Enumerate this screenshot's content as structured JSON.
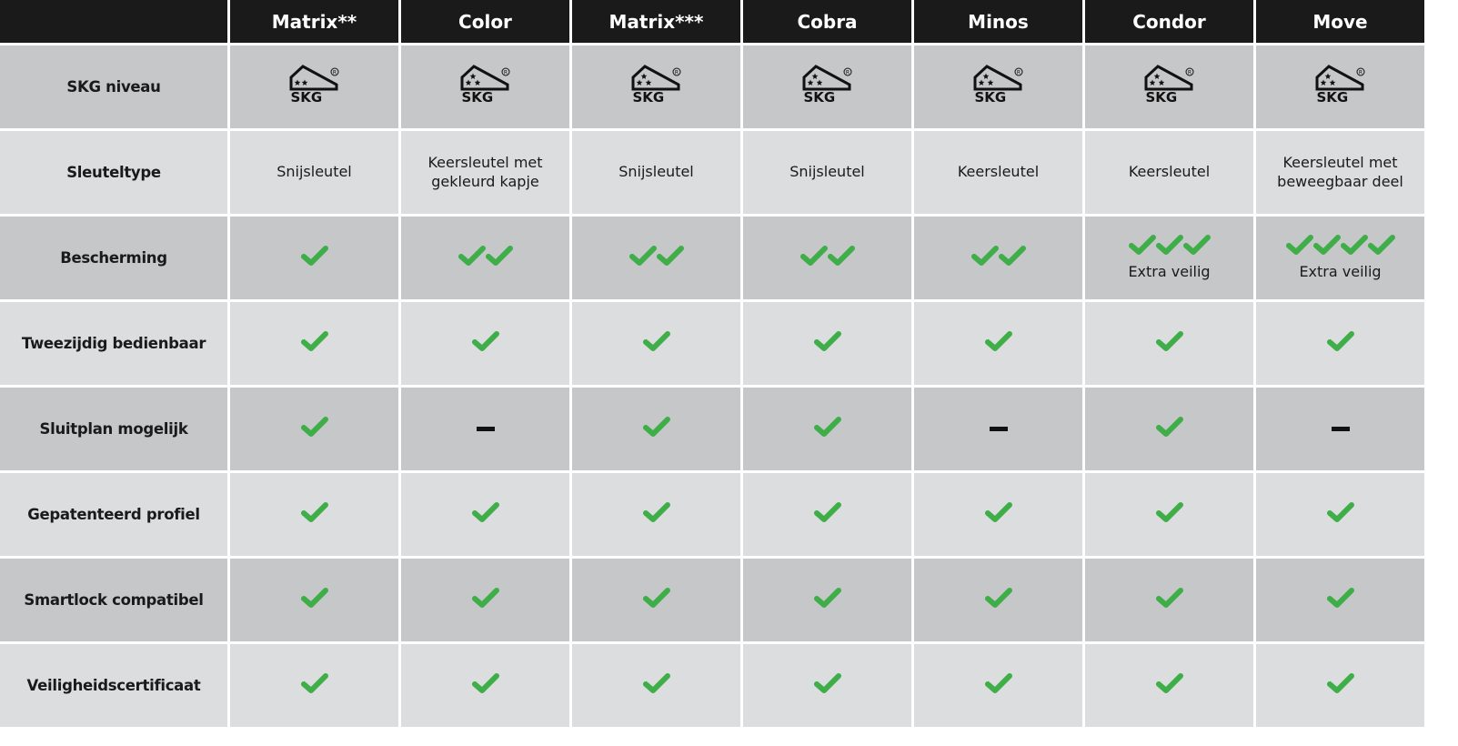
{
  "colors": {
    "header": "#1a1a1a",
    "row_dark": "#c6c7c9",
    "row_light": "#dcdddf",
    "check": "#3fae49"
  },
  "columns": [
    "Matrix**",
    "Color",
    "Matrix***",
    "Cobra",
    "Minos",
    "Condor",
    "Move"
  ],
  "rows": [
    {
      "label": "SKG niveau",
      "cells": [
        {
          "type": "skg",
          "stars": 2,
          "text": "SKG"
        },
        {
          "type": "skg",
          "stars": 3,
          "text": "SKG"
        },
        {
          "type": "skg",
          "stars": 3,
          "text": "SKG"
        },
        {
          "type": "skg",
          "stars": 3,
          "text": "SKG"
        },
        {
          "type": "skg",
          "stars": 3,
          "text": "SKG"
        },
        {
          "type": "skg",
          "stars": 3,
          "text": "SKG"
        },
        {
          "type": "skg",
          "stars": 3,
          "text": "SKG"
        }
      ]
    },
    {
      "label": "Sleuteltype",
      "cells": [
        {
          "type": "text",
          "text": "Snijsleutel"
        },
        {
          "type": "text",
          "text": "Keersleutel met gekleurd kapje"
        },
        {
          "type": "text",
          "text": "Snijsleutel"
        },
        {
          "type": "text",
          "text": "Snijsleutel"
        },
        {
          "type": "text",
          "text": "Keersleutel"
        },
        {
          "type": "text",
          "text": "Keersleutel"
        },
        {
          "type": "text",
          "text": "Keersleutel met beweegbaar deel"
        }
      ]
    },
    {
      "label": "Bescherming",
      "cells": [
        {
          "type": "check",
          "count": 1
        },
        {
          "type": "check",
          "count": 2
        },
        {
          "type": "check",
          "count": 2
        },
        {
          "type": "check",
          "count": 2
        },
        {
          "type": "check",
          "count": 2
        },
        {
          "type": "check",
          "count": 3,
          "note": "Extra veilig"
        },
        {
          "type": "check",
          "count": 4,
          "note": "Extra veilig"
        }
      ]
    },
    {
      "label": "Tweezijdig bedienbaar",
      "cells": [
        {
          "type": "check",
          "count": 1
        },
        {
          "type": "check",
          "count": 1
        },
        {
          "type": "check",
          "count": 1
        },
        {
          "type": "check",
          "count": 1
        },
        {
          "type": "check",
          "count": 1
        },
        {
          "type": "check",
          "count": 1
        },
        {
          "type": "check",
          "count": 1
        }
      ]
    },
    {
      "label": "Sluitplan mogelijk",
      "cells": [
        {
          "type": "check",
          "count": 1
        },
        {
          "type": "dash"
        },
        {
          "type": "check",
          "count": 1
        },
        {
          "type": "check",
          "count": 1
        },
        {
          "type": "dash"
        },
        {
          "type": "check",
          "count": 1
        },
        {
          "type": "dash"
        }
      ]
    },
    {
      "label": "Gepatenteerd profiel",
      "cells": [
        {
          "type": "check",
          "count": 1
        },
        {
          "type": "check",
          "count": 1
        },
        {
          "type": "check",
          "count": 1
        },
        {
          "type": "check",
          "count": 1
        },
        {
          "type": "check",
          "count": 1
        },
        {
          "type": "check",
          "count": 1
        },
        {
          "type": "check",
          "count": 1
        }
      ]
    },
    {
      "label": "Smartlock compatibel",
      "cells": [
        {
          "type": "check",
          "count": 1
        },
        {
          "type": "check",
          "count": 1
        },
        {
          "type": "check",
          "count": 1
        },
        {
          "type": "check",
          "count": 1
        },
        {
          "type": "check",
          "count": 1
        },
        {
          "type": "check",
          "count": 1
        },
        {
          "type": "check",
          "count": 1
        }
      ]
    },
    {
      "label": "Veiligheidscertificaat",
      "cells": [
        {
          "type": "check",
          "count": 1
        },
        {
          "type": "check",
          "count": 1
        },
        {
          "type": "check",
          "count": 1
        },
        {
          "type": "check",
          "count": 1
        },
        {
          "type": "check",
          "count": 1
        },
        {
          "type": "check",
          "count": 1
        },
        {
          "type": "check",
          "count": 1
        }
      ]
    }
  ]
}
